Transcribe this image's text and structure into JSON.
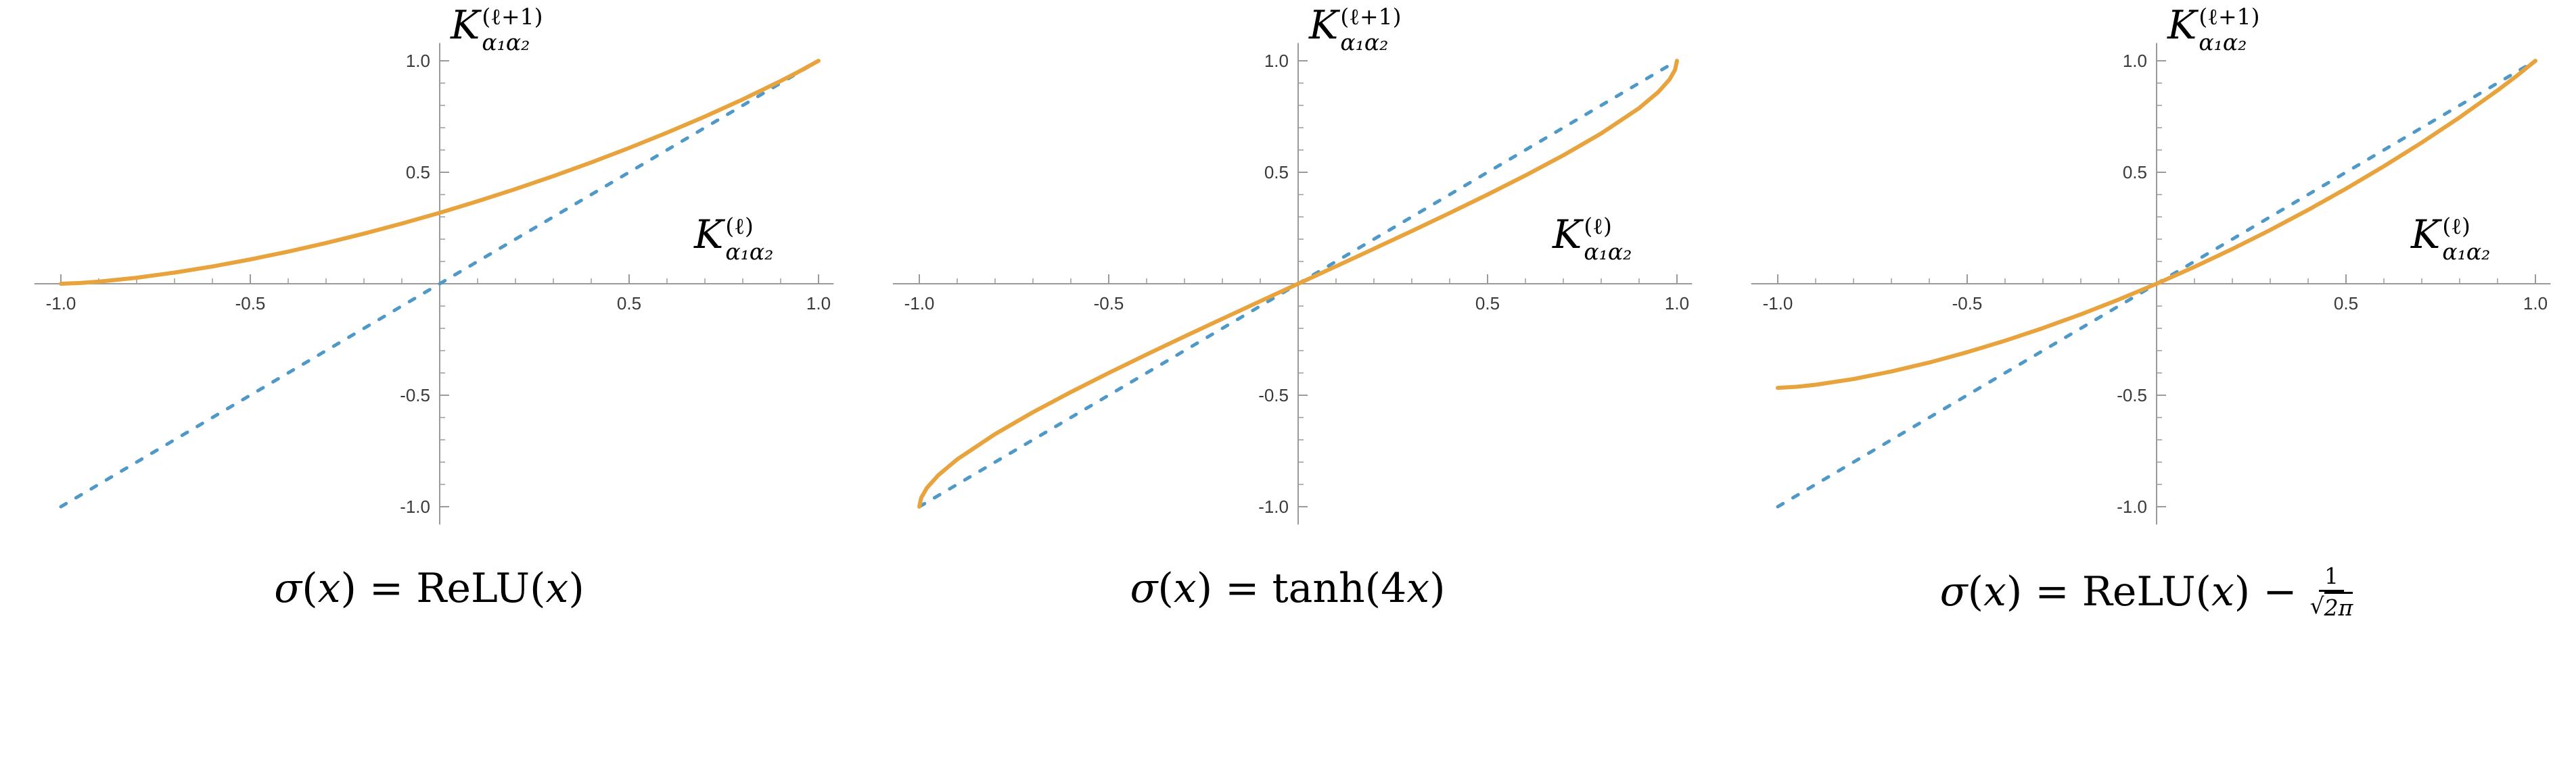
{
  "colors": {
    "background": "#FFFFFF",
    "axis": "#9A9A9A",
    "tick_text": "#3A3A3A",
    "curve_orange": "#E8A33D",
    "identity_blue": "#4F99C9"
  },
  "chart_data": [
    {
      "type": "line",
      "caption": "σ(x) = ReLU(x)",
      "caption_tokens": [
        {
          "t": "var",
          "v": "σ"
        },
        {
          "t": "rm",
          "v": "("
        },
        {
          "t": "var",
          "v": "x"
        },
        {
          "t": "rm",
          "v": ") = ReLU("
        },
        {
          "t": "var",
          "v": "x"
        },
        {
          "t": "rm",
          "v": ")"
        }
      ],
      "xlabel": {
        "base": "K",
        "sup": "(ℓ)",
        "sub": "α₁α₂"
      },
      "ylabel": {
        "base": "K",
        "sup": "(ℓ+1)",
        "sub": "α₁α₂"
      },
      "xlim": [
        -1,
        1
      ],
      "ylim": [
        -1,
        1
      ],
      "grid": false,
      "legend": null,
      "xticks": {
        "values": [
          -1,
          -0.5,
          0.5,
          1
        ],
        "labels": [
          "-1.0",
          "-0.5",
          "0.5",
          "1.0"
        ]
      },
      "yticks": {
        "values": [
          -1,
          -0.5,
          0.5,
          1
        ],
        "labels": [
          "-1.0",
          "-0.5",
          "0.5",
          "1.0"
        ]
      },
      "series": [
        {
          "name": "identity-line",
          "style": "dashed",
          "color": "#4F99C9",
          "x": [
            -1,
            1
          ],
          "y": [
            -1,
            1
          ]
        },
        {
          "name": "kernel-recursion-curve",
          "style": "solid",
          "color": "#E8A33D",
          "x": [
            -1,
            -0.95,
            -0.9,
            -0.8,
            -0.7,
            -0.6,
            -0.5,
            -0.4,
            -0.3,
            -0.2,
            -0.1,
            0,
            0.1,
            0.2,
            0.3,
            0.4,
            0.5,
            0.6,
            0.7,
            0.8,
            0.9,
            0.95,
            1
          ],
          "y": [
            0,
            0.0034,
            0.0095,
            0.0271,
            0.0501,
            0.0776,
            0.109,
            0.1441,
            0.1827,
            0.2247,
            0.2699,
            0.3183,
            0.3699,
            0.4247,
            0.4827,
            0.5441,
            0.609,
            0.6776,
            0.7501,
            0.8271,
            0.9095,
            0.9533,
            1
          ]
        }
      ]
    },
    {
      "type": "line",
      "caption": "σ(x) = tanh(4x)",
      "caption_tokens": [
        {
          "t": "var",
          "v": "σ"
        },
        {
          "t": "rm",
          "v": "("
        },
        {
          "t": "var",
          "v": "x"
        },
        {
          "t": "rm",
          "v": ") = tanh(4"
        },
        {
          "t": "var",
          "v": "x"
        },
        {
          "t": "rm",
          "v": ")"
        }
      ],
      "xlabel": {
        "base": "K",
        "sup": "(ℓ)",
        "sub": "α₁α₂"
      },
      "ylabel": {
        "base": "K",
        "sup": "(ℓ+1)",
        "sub": "α₁α₂"
      },
      "xlim": [
        -1,
        1
      ],
      "ylim": [
        -1,
        1
      ],
      "grid": false,
      "legend": null,
      "xticks": {
        "values": [
          -1,
          -0.5,
          0.5,
          1
        ],
        "labels": [
          "-1.0",
          "-0.5",
          "0.5",
          "1.0"
        ]
      },
      "yticks": {
        "values": [
          -1,
          -0.5,
          0.5,
          1
        ],
        "labels": [
          "-1.0",
          "-0.5",
          "0.5",
          "1.0"
        ]
      },
      "series": [
        {
          "name": "identity-line",
          "style": "dashed",
          "color": "#4F99C9",
          "x": [
            -1,
            1
          ],
          "y": [
            -1,
            1
          ]
        },
        {
          "name": "kernel-recursion-curve",
          "style": "solid",
          "color": "#E8A33D",
          "x": [
            -1,
            -0.995,
            -0.98,
            -0.95,
            -0.9,
            -0.8,
            -0.7,
            -0.6,
            -0.5,
            -0.4,
            -0.3,
            -0.2,
            -0.1,
            0,
            0.1,
            0.2,
            0.3,
            0.4,
            0.5,
            0.6,
            0.7,
            0.8,
            0.9,
            0.95,
            0.98,
            0.995,
            1
          ],
          "y": [
            -1,
            -0.9598,
            -0.9154,
            -0.8587,
            -0.7877,
            -0.6742,
            -0.5762,
            -0.4858,
            -0.4,
            -0.3172,
            -0.2364,
            -0.1569,
            -0.0783,
            0,
            0.0783,
            0.1569,
            0.2364,
            0.3172,
            0.4,
            0.4858,
            0.5762,
            0.6742,
            0.7877,
            0.8587,
            0.9154,
            0.9598,
            1
          ]
        }
      ]
    },
    {
      "type": "line",
      "caption": "σ(x) = ReLU(x) − 1/√2π",
      "caption_tokens": [
        {
          "t": "var",
          "v": "σ"
        },
        {
          "t": "rm",
          "v": "("
        },
        {
          "t": "var",
          "v": "x"
        },
        {
          "t": "rm",
          "v": ") = ReLU("
        },
        {
          "t": "var",
          "v": "x"
        },
        {
          "t": "rm",
          "v": ") − "
        },
        {
          "t": "frac",
          "num": "1",
          "den": "2π",
          "sqrt": true
        }
      ],
      "xlabel": {
        "base": "K",
        "sup": "(ℓ)",
        "sub": "α₁α₂"
      },
      "ylabel": {
        "base": "K",
        "sup": "(ℓ+1)",
        "sub": "α₁α₂"
      },
      "xlim": [
        -1,
        1
      ],
      "ylim": [
        -1,
        1
      ],
      "grid": false,
      "legend": null,
      "xticks": {
        "values": [
          -1,
          -0.5,
          0.5,
          1
        ],
        "labels": [
          "-1.0",
          "-0.5",
          "0.5",
          "1.0"
        ]
      },
      "yticks": {
        "values": [
          -1,
          -0.5,
          0.5,
          1
        ],
        "labels": [
          "-1.0",
          "-0.5",
          "0.5",
          "1.0"
        ]
      },
      "series": [
        {
          "name": "identity-line",
          "style": "dashed",
          "color": "#4F99C9",
          "x": [
            -1,
            1
          ],
          "y": [
            -1,
            1
          ]
        },
        {
          "name": "kernel-recursion-curve",
          "style": "solid",
          "color": "#E8A33D",
          "x": [
            -1,
            -0.95,
            -0.9,
            -0.8,
            -0.7,
            -0.6,
            -0.5,
            -0.4,
            -0.3,
            -0.2,
            -0.1,
            0,
            0.1,
            0.2,
            0.3,
            0.4,
            0.5,
            0.6,
            0.7,
            0.8,
            0.9,
            0.95,
            1
          ],
          "y": [
            -0.4669,
            -0.462,
            -0.4529,
            -0.4272,
            -0.3934,
            -0.3532,
            -0.3071,
            -0.2555,
            -0.1989,
            -0.1373,
            -0.071,
            0,
            0.0757,
            0.156,
            0.2412,
            0.3313,
            0.4264,
            0.527,
            0.6333,
            0.7464,
            0.8673,
            0.9315,
            1
          ]
        }
      ]
    }
  ]
}
